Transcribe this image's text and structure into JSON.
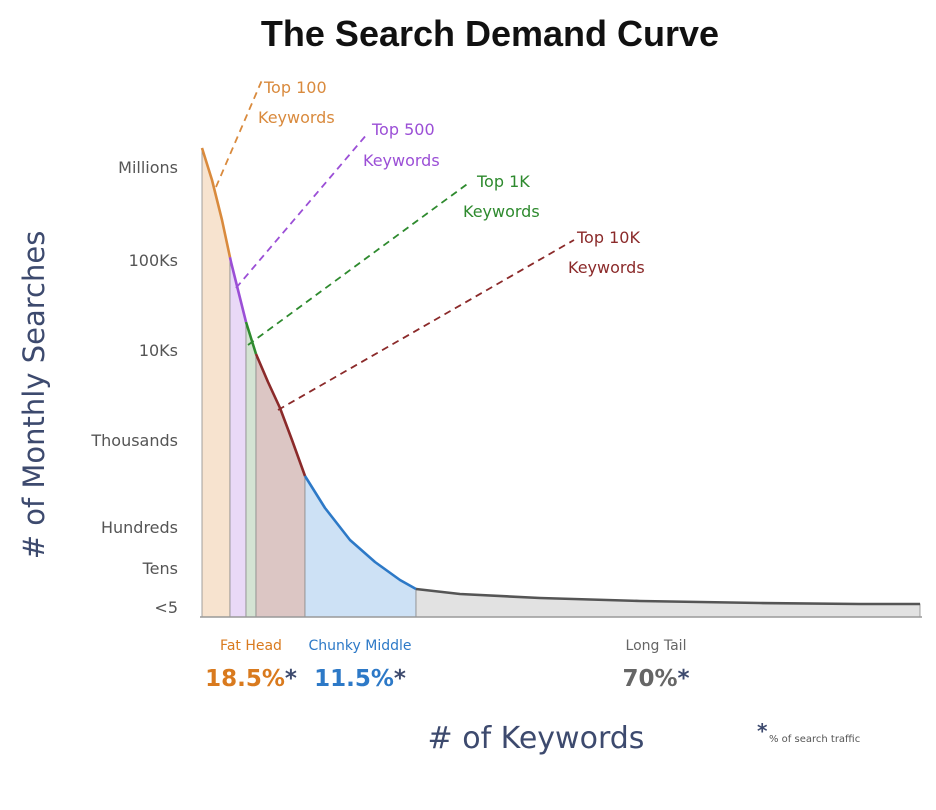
{
  "chart_data": {
    "type": "area",
    "title": "The Search Demand Curve",
    "xlabel": "# of Keywords",
    "ylabel": "# of Monthly Searches",
    "y_tick_labels": [
      "Millions",
      "100Ks",
      "10Ks",
      "Thousands",
      "Hundreds",
      "Tens",
      "<5"
    ],
    "grid": false,
    "annotations": [
      {
        "line1": "Top 100",
        "line2": "Keywords",
        "color": "#d98a3d"
      },
      {
        "line1": "Top 500",
        "line2": "Keywords",
        "color": "#9b4fd6"
      },
      {
        "line1": "Top 1K",
        "line2": "Keywords",
        "color": "#2e8a2e"
      },
      {
        "line1": "Top 10K",
        "line2": "Keywords",
        "color": "#8b2a2a"
      }
    ],
    "segments": [
      {
        "name": "Fat Head",
        "share": "18.5%",
        "color": "#d97a1e"
      },
      {
        "name": "Chunky Middle",
        "share": "11.5%",
        "color": "#2d79c7"
      },
      {
        "name": "Long Tail",
        "share": "70%",
        "color": "#666666"
      }
    ],
    "share_marker": "*",
    "footnote": "% of search traffic",
    "colors": {
      "top100_fill": "#f7e3cf",
      "top500_fill": "#e9d9f7",
      "top1k_fill": "#d4e3d3",
      "top10k_fill": "#dcc6c4",
      "middle_fill": "#cde1f5",
      "tail_fill": "#e2e2e2",
      "middle_line": "#2d79c7",
      "tail_line": "#555555"
    }
  }
}
